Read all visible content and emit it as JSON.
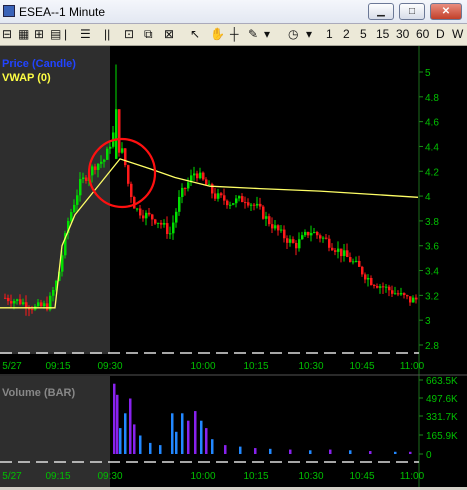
{
  "window": {
    "title": "ESEA--1 Minute",
    "minimize_label": "▁",
    "maximize_label": "□",
    "close_label": "✕"
  },
  "toolbar": {
    "sep1": "|",
    "lines_icon": "lines-icon",
    "pause_label": "||",
    "timeframes": [
      "1",
      "2",
      "5",
      "15",
      "30",
      "60",
      "D",
      "W"
    ]
  },
  "colors": {
    "background": "#000000",
    "premarket_shade": "#2e2e2e",
    "up_candle": "#00e000",
    "down_candle": "#ff1a1a",
    "vwap": "#ffff66",
    "axis_text": "#00c000",
    "annotation": "#ff1010",
    "volume_bar": "#8822ee",
    "volume_bar_alt": "#2288ff"
  },
  "chart_data": [
    {
      "type": "candlestick",
      "legend": [
        "Price (Candle)",
        "VWAP (0)"
      ],
      "y_axis": {
        "ticks": [
          "5",
          "4.8",
          "4.6",
          "4.4",
          "4.2",
          "4",
          "3.8",
          "3.6",
          "3.4",
          "3.2",
          "3",
          "2.8"
        ],
        "range": [
          2.8,
          5.1
        ]
      },
      "x_axis": {
        "ticks": [
          "5/27",
          "09:15",
          "09:30",
          "10:00",
          "10:15",
          "10:30",
          "10:45",
          "11:00"
        ]
      },
      "premarket_until": "09:30",
      "annotation": "red circle around 09:30 spike"
    },
    {
      "type": "bar",
      "label": "Volume (BAR)",
      "y_axis": {
        "ticks": [
          "663.5K",
          "497.6K",
          "331.7K",
          "165.9K",
          "0"
        ],
        "range": [
          0,
          663500
        ]
      },
      "x_axis": {
        "ticks": [
          "5/27",
          "09:15",
          "09:30",
          "10:00",
          "10:15",
          "10:30",
          "10:45",
          "11:00"
        ]
      }
    }
  ]
}
